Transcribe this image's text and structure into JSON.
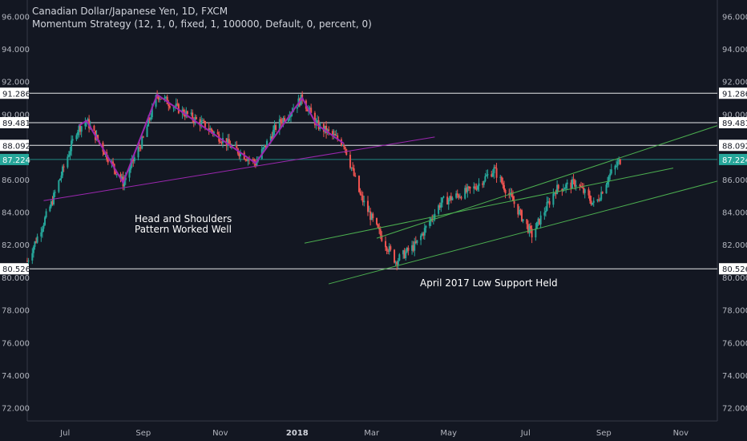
{
  "chart_data": {
    "type": "candlestick",
    "title": "Canadian Dollar/Japanese Yen, 1D, FXCM",
    "subtitle": "Momentum Strategy (12, 1, 0, fixed, 1, 100000, Default, 0, percent, 0)",
    "ylim": [
      71.2,
      97.0
    ],
    "y_ticks": [
      "72.000",
      "74.000",
      "76.000",
      "78.000",
      "80.000",
      "82.000",
      "84.000",
      "86.000",
      "88.000",
      "90.000",
      "92.000",
      "94.000",
      "96.000"
    ],
    "x_ticks": [
      "Jul",
      "Sep",
      "Nov",
      "2018",
      "Mar",
      "May",
      "Jul",
      "Sep",
      "Nov"
    ],
    "levels": [
      {
        "label": "91.286",
        "value": 91.286,
        "color": "#ffffff"
      },
      {
        "label": "89.481",
        "value": 89.481,
        "color": "#ffffff"
      },
      {
        "label": "88.092",
        "value": 88.092,
        "color": "#ffffff"
      },
      {
        "label": "80.526",
        "value": 80.526,
        "color": "#ffffff"
      },
      {
        "label": "87.224",
        "value": 87.224,
        "color": "#26a69a",
        "current": true
      }
    ],
    "annotations": [
      {
        "text": "Head and Shoulders"
      },
      {
        "text": "Pattern Worked Well"
      },
      {
        "text": "April 2017 Low Support Held"
      }
    ],
    "colors": {
      "background": "#131722",
      "up": "#26a69a",
      "down": "#ef5350",
      "pattern": "#9c27b0",
      "channel": "#4caf50",
      "level": "#ffffff"
    },
    "channel_lines": [
      {
        "from": [
          0.28,
          82.1
        ],
        "to": [
          0.74,
          86.7
        ]
      },
      {
        "from": [
          0.28,
          79.6
        ],
        "to": [
          0.94,
          86.0
        ]
      },
      {
        "from": [
          0.28,
          82.1
        ],
        "to": [
          0.94,
          89.3
        ]
      }
    ],
    "neckline": {
      "from": [
        "2017-06-14",
        84.7
      ],
      "to": [
        "2018-04-20",
        88.6
      ]
    },
    "pattern_points": [
      [
        "2017-07-12",
        89.3
      ],
      [
        "2017-07-18",
        89.6
      ],
      [
        "2017-08-16",
        85.8
      ],
      [
        "2017-09-12",
        91.2
      ],
      [
        "2017-11-29",
        87.0
      ],
      [
        "2018-01-05",
        91.0
      ],
      [
        "2018-01-16",
        89.4
      ],
      [
        "2018-02-07",
        88.2
      ]
    ]
  }
}
